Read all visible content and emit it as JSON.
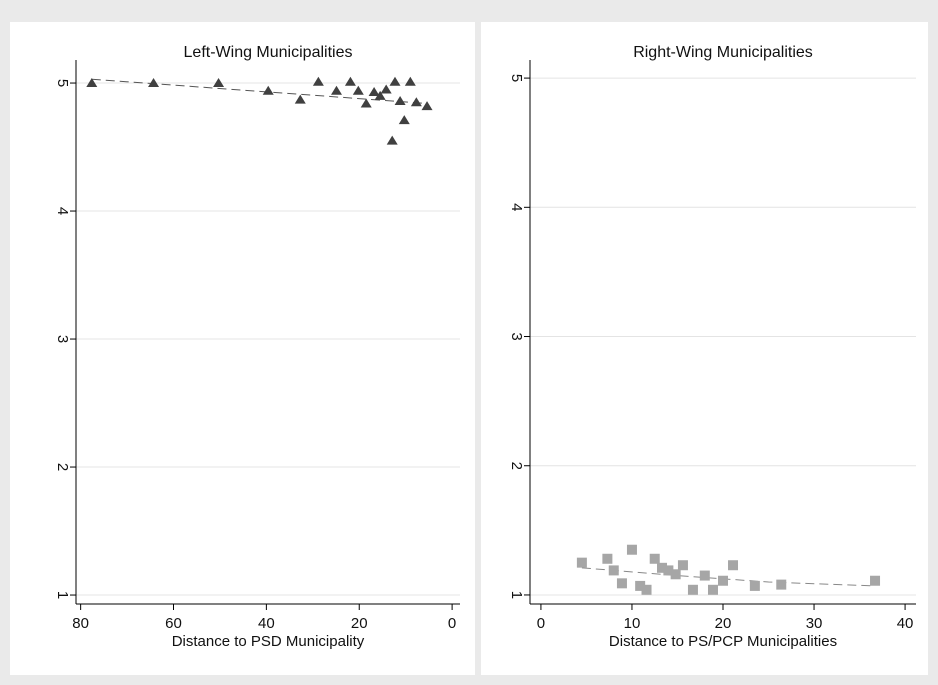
{
  "chart_data": [
    {
      "type": "scatter",
      "title": "Left-Wing Municipalities",
      "xlabel": "Distance to PSD Municipality",
      "x": [
        77.6,
        64.3,
        50.3,
        39.6,
        32.7,
        28.8,
        24.9,
        21.9,
        20.2,
        18.5,
        16.8,
        15.5,
        14.2,
        12.9,
        12.3,
        11.2,
        10.3,
        9.0,
        7.7,
        5.4
      ],
      "values": [
        5.0,
        5.0,
        5.0,
        4.94,
        4.87,
        5.01,
        4.94,
        5.01,
        4.94,
        4.84,
        4.93,
        4.9,
        4.95,
        4.55,
        5.01,
        4.86,
        4.71,
        5.01,
        4.85,
        4.82
      ],
      "color": "#404040",
      "marker": "triangle",
      "fit_x": [
        77.6,
        5.4
      ],
      "fit_values": [
        5.03,
        4.84
      ],
      "fit_color": "#555555",
      "xlim": [
        81,
        -1.7
      ],
      "xticks": [
        80,
        60,
        40,
        20,
        0
      ],
      "ylim": [
        0.93,
        5.18
      ],
      "yticks": [
        1,
        2,
        3,
        4,
        5
      ],
      "grid": true
    },
    {
      "type": "scatter",
      "title": "Right-Wing Municipalities",
      "xlabel": "Distance to PS/PCP Municipalities",
      "x": [
        4.5,
        7.3,
        8.0,
        8.9,
        10.0,
        10.9,
        11.6,
        12.5,
        13.3,
        14.0,
        14.8,
        15.6,
        16.7,
        18.0,
        18.9,
        20.0,
        21.1,
        23.5,
        26.4,
        36.7
      ],
      "values": [
        1.25,
        1.28,
        1.19,
        1.09,
        1.35,
        1.07,
        1.04,
        1.28,
        1.21,
        1.19,
        1.16,
        1.23,
        1.04,
        1.15,
        1.04,
        1.11,
        1.23,
        1.07,
        1.08,
        1.11
      ],
      "color": "#a6a6a6",
      "marker": "square",
      "fit_x": [
        4.5,
        15,
        25,
        36.7
      ],
      "fit_values": [
        1.21,
        1.15,
        1.1,
        1.07
      ],
      "fit_color": "#888888",
      "xlim": [
        -1.2,
        41.2
      ],
      "xticks": [
        0,
        10,
        20,
        30,
        40
      ],
      "ylim": [
        0.93,
        5.14
      ],
      "yticks": [
        1,
        2,
        3,
        4,
        5
      ],
      "grid": true
    }
  ]
}
